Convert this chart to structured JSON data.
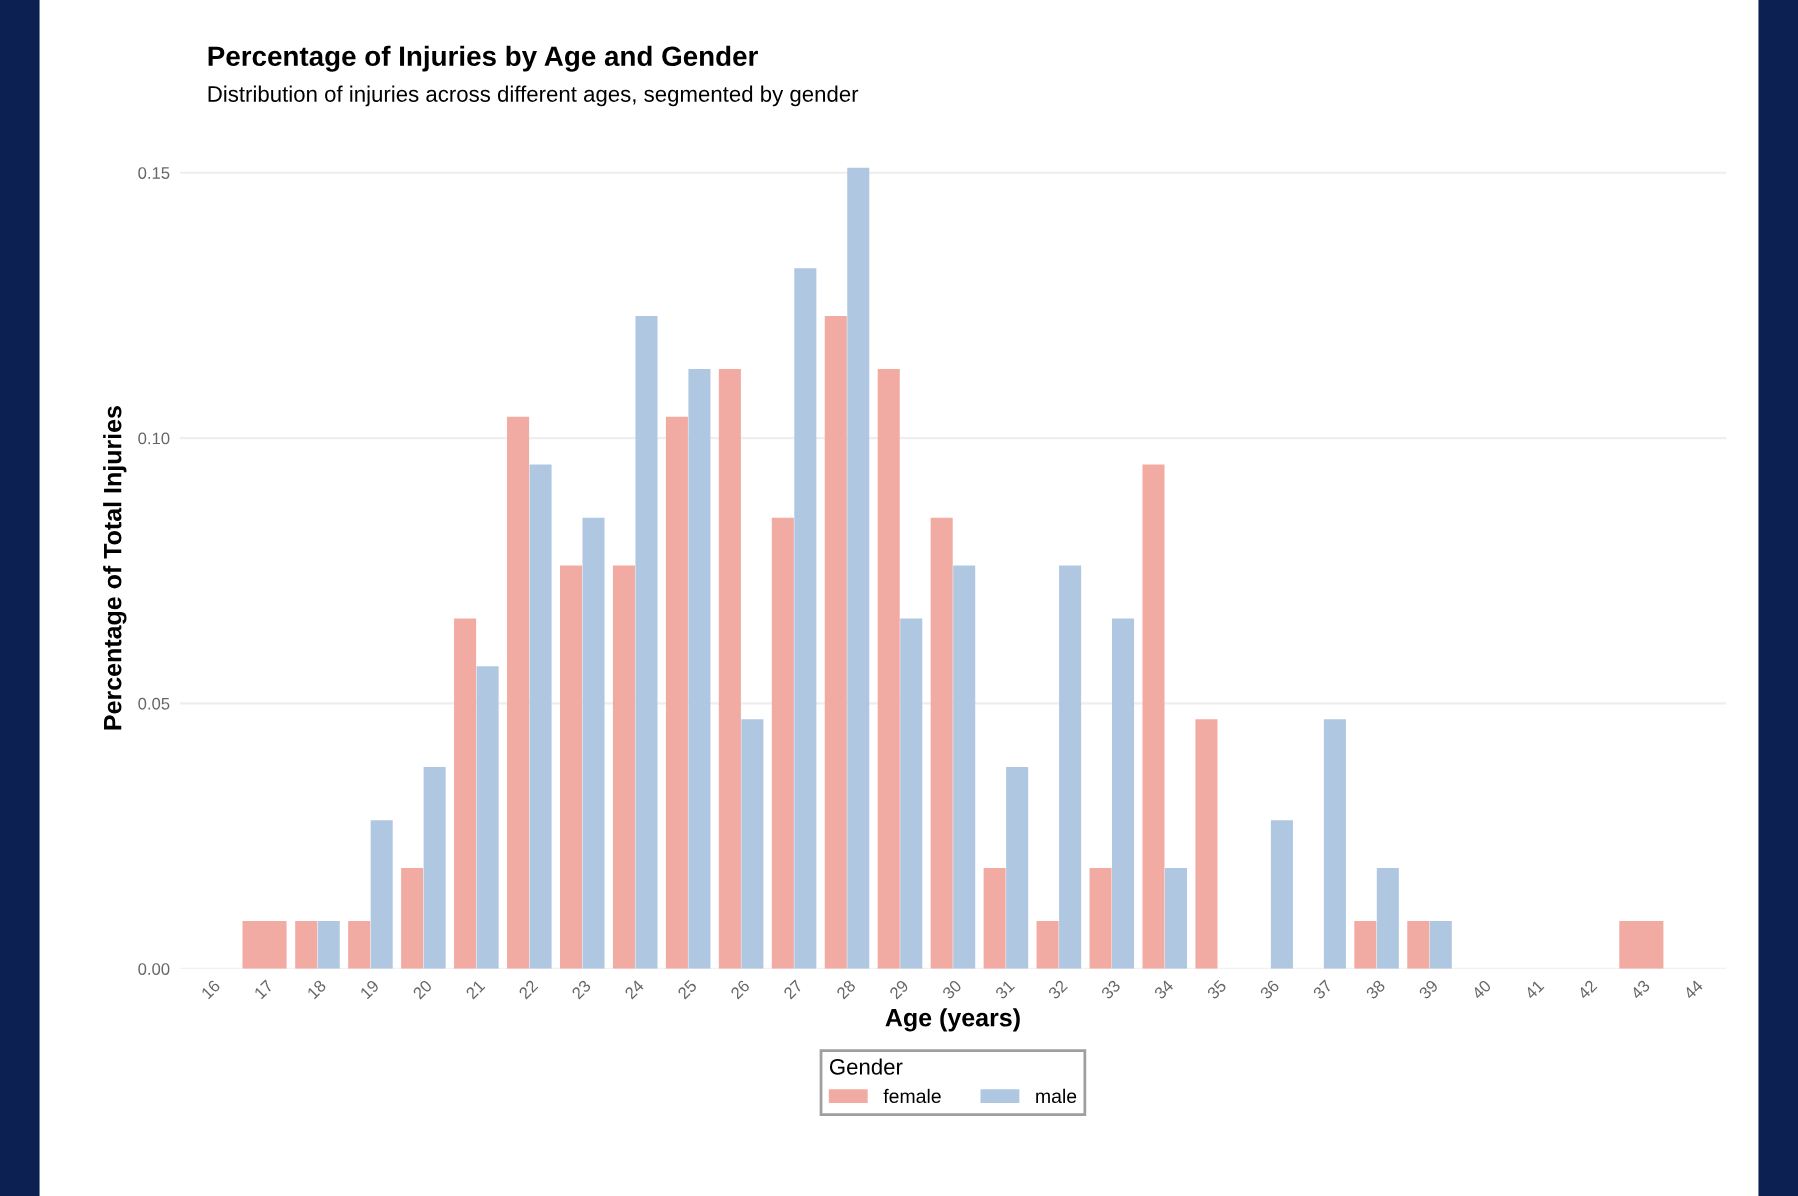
{
  "chart_data": {
    "type": "bar",
    "title": "Percentage of Injuries by Age and Gender",
    "subtitle": "Distribution of injuries across different ages, segmented by gender",
    "xlabel": "Age (years)",
    "ylabel": "Percentage of Total Injuries",
    "legend_title": "Gender",
    "categories": [
      "16",
      "17",
      "18",
      "19",
      "20",
      "21",
      "22",
      "23",
      "24",
      "25",
      "26",
      "27",
      "28",
      "29",
      "30",
      "31",
      "32",
      "33",
      "34",
      "35",
      "36",
      "37",
      "38",
      "39",
      "40",
      "41",
      "42",
      "43",
      "44"
    ],
    "series": [
      {
        "name": "female",
        "color": "#f2aba3",
        "values": [
          null,
          0.009,
          0.009,
          0.009,
          0.019,
          0.066,
          0.104,
          0.076,
          0.076,
          0.104,
          0.113,
          0.085,
          0.123,
          0.113,
          0.085,
          0.019,
          0.009,
          0.019,
          0.095,
          0.047,
          0,
          0,
          0.009,
          0.009,
          null,
          null,
          null,
          0.009,
          null
        ]
      },
      {
        "name": "male",
        "color": "#b0c7e1",
        "values": [
          null,
          null,
          0.009,
          0.028,
          0.038,
          0.057,
          0.095,
          0.085,
          0.123,
          0.113,
          0.047,
          0.132,
          0.151,
          0.066,
          0.076,
          0.038,
          0.076,
          0.066,
          0.019,
          0,
          0.028,
          0.047,
          0.019,
          0.009,
          null,
          null,
          null,
          null,
          null
        ]
      }
    ],
    "ylim": [
      0,
      0.151
    ],
    "yticks": [
      {
        "value": 0,
        "label": "0.00"
      },
      {
        "value": 0.05,
        "label": "0.05"
      },
      {
        "value": 0.1,
        "label": "0.10"
      },
      {
        "value": 0.15,
        "label": "0.15"
      }
    ],
    "grid": "y",
    "legend": "bottom"
  }
}
